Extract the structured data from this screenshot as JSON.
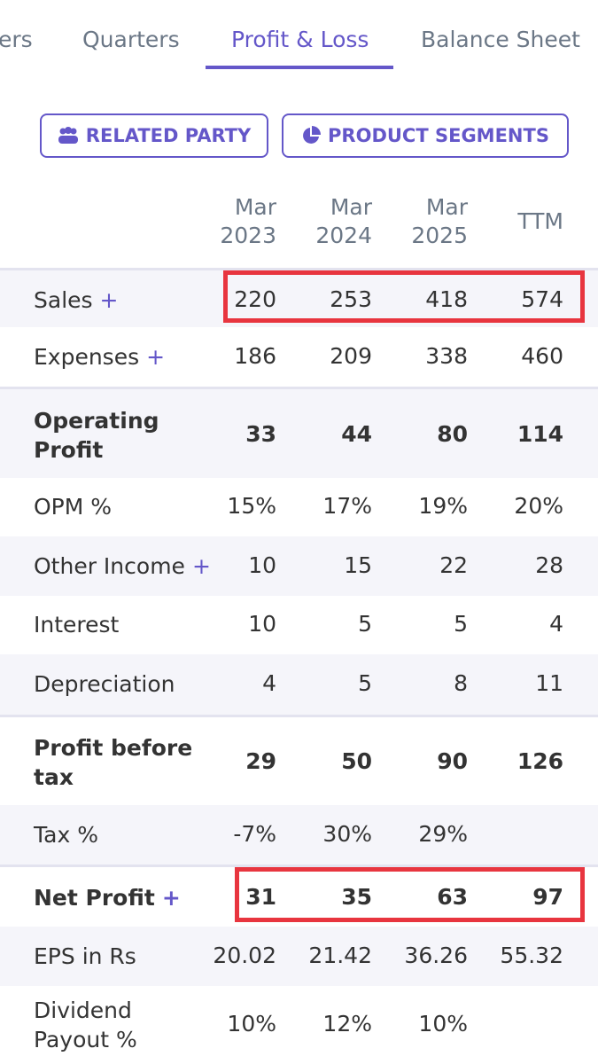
{
  "tabs": [
    "ers",
    "Quarters",
    "Profit & Loss",
    "Balance Sheet"
  ],
  "active_tab": 2,
  "buttons": [
    "RELATED PARTY",
    "PRODUCT SEGMENTS"
  ],
  "table": {
    "columns": [
      [
        "Mar",
        "2023"
      ],
      [
        "Mar",
        "2024"
      ],
      [
        "Mar",
        "2025"
      ],
      [
        "TTM"
      ]
    ],
    "rows": [
      {
        "label": "Sales",
        "toggle": "+",
        "values": [
          "220",
          "253",
          "418",
          "574"
        ],
        "highlight": true
      },
      {
        "label": "Expenses",
        "toggle": "+",
        "values": [
          "186",
          "209",
          "338",
          "460"
        ]
      },
      {
        "label": "Operating Profit",
        "bold": true,
        "values": [
          "33",
          "44",
          "80",
          "114"
        ]
      },
      {
        "label": "OPM %",
        "values": [
          "15%",
          "17%",
          "19%",
          "20%"
        ]
      },
      {
        "label": "Other Income",
        "toggle": "+",
        "values": [
          "10",
          "15",
          "22",
          "28"
        ]
      },
      {
        "label": "Interest",
        "values": [
          "10",
          "5",
          "5",
          "4"
        ]
      },
      {
        "label": "Depreciation",
        "values": [
          "4",
          "5",
          "8",
          "11"
        ]
      },
      {
        "label": "Profit before tax",
        "bold": true,
        "values": [
          "29",
          "50",
          "90",
          "126"
        ]
      },
      {
        "label": "Tax %",
        "values": [
          "-7%",
          "30%",
          "29%"
        ]
      },
      {
        "label": "Net Profit",
        "toggle": "+",
        "bold": true,
        "values": [
          "31",
          "35",
          "63",
          "97"
        ],
        "highlight": true
      },
      {
        "label": "EPS in Rs",
        "values": [
          "20.02",
          "21.42",
          "36.26",
          "55.32"
        ]
      },
      {
        "label": "Dividend Payout %",
        "values": [
          "10%",
          "12%",
          "10%"
        ]
      }
    ]
  }
}
